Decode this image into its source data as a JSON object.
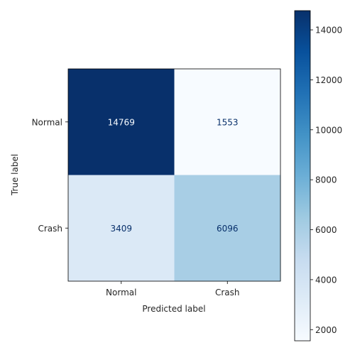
{
  "chart_data": {
    "type": "heatmap",
    "xlabel": "Predicted label",
    "ylabel": "True label",
    "x_categories": [
      "Normal",
      "Crash"
    ],
    "y_categories": [
      "Normal",
      "Crash"
    ],
    "matrix": [
      [
        14769,
        1553
      ],
      [
        3409,
        6096
      ]
    ],
    "colormap": "Blues",
    "colorbar": {
      "min": 1553,
      "max": 14769,
      "ticks": [
        2000,
        4000,
        6000,
        8000,
        10000,
        12000,
        14000
      ]
    },
    "colors": {
      "high": "#08306b",
      "low": "#f7fbff",
      "text_on_dark": "#f7fbff",
      "text_on_light": "#08306b"
    }
  }
}
